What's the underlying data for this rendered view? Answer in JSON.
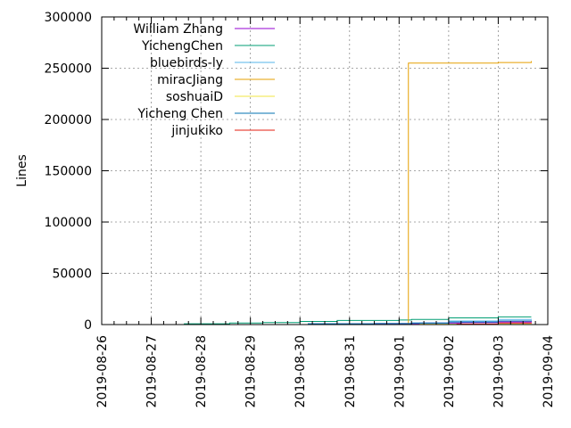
{
  "chart_data": {
    "type": "line",
    "title": "",
    "xlabel": "",
    "ylabel": "Lines",
    "x_axis": {
      "type": "date",
      "range": [
        "2019-08-26",
        "2019-09-04"
      ],
      "ticks": [
        "2019-08-26",
        "2019-08-27",
        "2019-08-28",
        "2019-08-29",
        "2019-08-30",
        "2019-08-31",
        "2019-09-01",
        "2019-09-02",
        "2019-09-03",
        "2019-09-04"
      ]
    },
    "y_axis": {
      "range": [
        0,
        300000
      ],
      "ticks": [
        0,
        50000,
        100000,
        150000,
        200000,
        250000,
        300000
      ],
      "tick_labels": [
        "0",
        "50000",
        "100000",
        "150000",
        "200000",
        "250000",
        "300000"
      ]
    },
    "grid": "dotted, both axes",
    "legend_position": "top-left",
    "series": [
      {
        "name": "William Zhang",
        "color": "#9400d3",
        "points": [
          [
            "2019-08-30 00:00",
            0
          ],
          [
            "2019-08-30 04:00",
            700
          ],
          [
            "2019-08-31 12:00",
            1000
          ],
          [
            "2019-09-01 10:00",
            1500
          ],
          [
            "2019-09-02 06:00",
            2000
          ],
          [
            "2019-09-03 00:00",
            2500
          ],
          [
            "2019-09-03 16:00",
            3000
          ]
        ]
      },
      {
        "name": "YichengChen",
        "color": "#009e73",
        "points": [
          [
            "2019-08-27 14:00",
            0
          ],
          [
            "2019-08-27 16:00",
            800
          ],
          [
            "2019-08-28 14:00",
            1500
          ],
          [
            "2019-08-29 06:00",
            2000
          ],
          [
            "2019-08-30 00:00",
            3000
          ],
          [
            "2019-08-30 18:00",
            4000
          ],
          [
            "2019-09-01 00:00",
            4500
          ],
          [
            "2019-09-01 06:00",
            5000
          ],
          [
            "2019-09-02 00:00",
            6500
          ],
          [
            "2019-09-03 00:00",
            7500
          ],
          [
            "2019-09-03 16:00",
            7500
          ]
        ]
      },
      {
        "name": "bluebirds-ly",
        "color": "#56b4e9",
        "points": [
          [
            "2019-09-01 04:00",
            0
          ],
          [
            "2019-09-01 06:00",
            1500
          ],
          [
            "2019-09-02 00:00",
            3500
          ],
          [
            "2019-09-03 00:00",
            5000
          ],
          [
            "2019-09-03 16:00",
            5500
          ]
        ]
      },
      {
        "name": "miracJiang",
        "color": "#e69f00",
        "points": [
          [
            "2019-09-01 04:00",
            0
          ],
          [
            "2019-09-01 04:30",
            255000
          ],
          [
            "2019-09-03 00:00",
            255500
          ],
          [
            "2019-09-03 16:00",
            257000
          ]
        ]
      },
      {
        "name": "soshuaiD",
        "color": "#f0e442",
        "points": [
          [
            "2019-09-01 08:00",
            0
          ],
          [
            "2019-09-01 10:00",
            300
          ],
          [
            "2019-09-03 16:00",
            800
          ]
        ]
      },
      {
        "name": "Yicheng Chen",
        "color": "#0072b2",
        "points": [
          [
            "2019-08-30 00:00",
            0
          ],
          [
            "2019-08-30 04:00",
            800
          ],
          [
            "2019-08-31 12:00",
            1000
          ],
          [
            "2019-09-01 06:00",
            1500
          ],
          [
            "2019-09-02 00:00",
            2500
          ],
          [
            "2019-09-03 00:00",
            3500
          ],
          [
            "2019-09-03 16:00",
            4000
          ]
        ]
      },
      {
        "name": "jinjukiko",
        "color": "#e51e10",
        "points": [
          [
            "2019-09-02 00:00",
            0
          ],
          [
            "2019-09-02 04:00",
            500
          ],
          [
            "2019-09-03 00:00",
            1500
          ],
          [
            "2019-09-03 16:00",
            2000
          ]
        ]
      }
    ]
  }
}
